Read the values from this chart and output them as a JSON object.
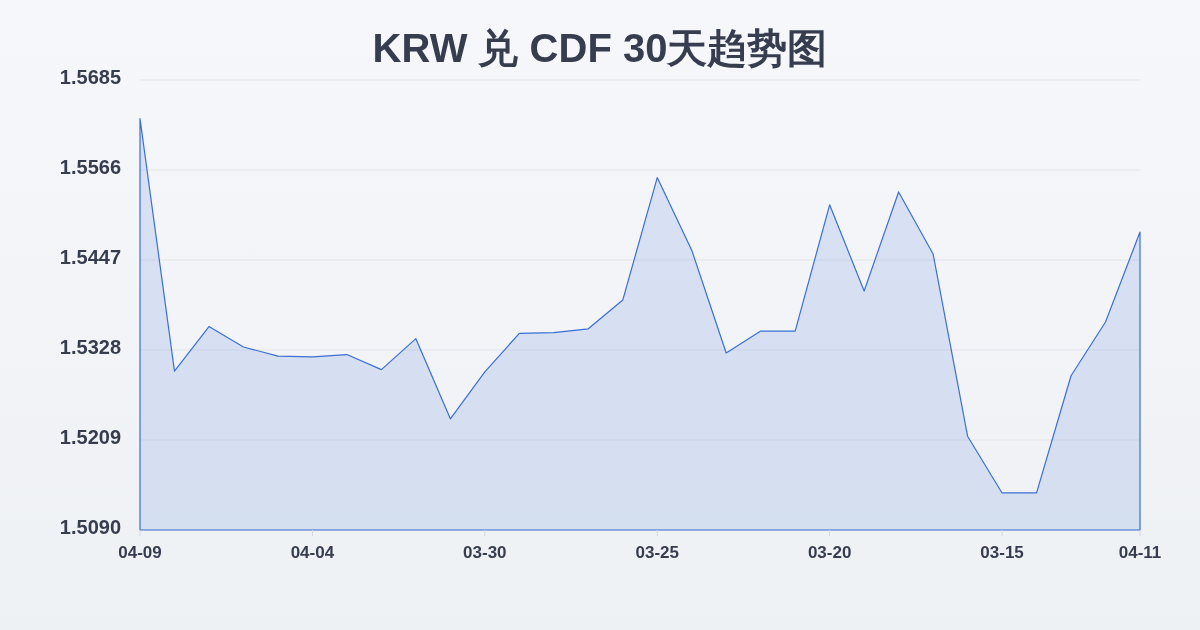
{
  "chart_data": {
    "type": "area",
    "title": "KRW 兑 CDF 30天趋势图",
    "categories": [
      "04-09",
      null,
      null,
      null,
      null,
      "04-04",
      null,
      null,
      null,
      null,
      "03-30",
      null,
      null,
      null,
      null,
      "03-25",
      null,
      null,
      null,
      null,
      "03-20",
      null,
      null,
      null,
      null,
      "03-15",
      null,
      null,
      null,
      "04-11"
    ],
    "values": [
      1.5634,
      1.53,
      1.5359,
      1.5332,
      1.532,
      1.5319,
      1.5322,
      1.5302,
      1.5343,
      1.5237,
      1.5299,
      1.535,
      1.5351,
      1.5356,
      1.5394,
      1.5556,
      1.546,
      1.5324,
      1.5353,
      1.5353,
      1.552,
      1.5406,
      1.5537,
      1.5455,
      1.5214,
      1.5139,
      1.5139,
      1.5294,
      1.5365,
      1.5484
    ],
    "color": "#3b6fd4",
    "ylim": [
      1.509,
      1.5685
    ],
    "yticks": [
      {
        "value": 1.509,
        "label": "1.5090"
      },
      {
        "value": 1.5209,
        "label": "1.5209"
      },
      {
        "value": 1.5328,
        "label": "1.5328"
      },
      {
        "value": 1.5447,
        "label": "1.5447"
      },
      {
        "value": 1.5566,
        "label": "1.5566"
      },
      {
        "value": 1.5685,
        "label": "1.5685"
      }
    ],
    "grid": "y"
  }
}
